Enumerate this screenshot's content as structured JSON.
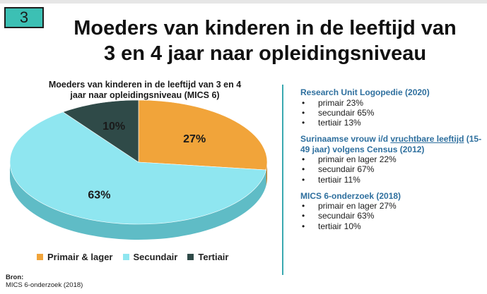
{
  "slide_number": "3",
  "title_line1": "Moeders van kinderen in de leeftijd van",
  "title_line2": "3 en 4 jaar naar opleidingsniveau",
  "source_label": "Bron:",
  "source_text": "MICS 6-onderzoek (2018)",
  "chart_data": {
    "type": "pie",
    "title_line1": "Moeders van kinderen in de leeftijd van 3 en 4",
    "title_line2": "jaar naar opleidingsniveau (MICS 6)",
    "categories": [
      "Primair & lager",
      "Secundair",
      "Tertiair"
    ],
    "values": [
      27,
      63,
      10
    ],
    "labels": [
      "27%",
      "63%",
      "10%"
    ],
    "colors": [
      "#f1a43a",
      "#8fe6f0",
      "#2f4a48"
    ],
    "side_colors": [
      "#c47f22",
      "#5fbcc6",
      "#1f3331"
    ],
    "legend_position": "bottom"
  },
  "panel": {
    "blocks": [
      {
        "heading_a": "Research Unit Logopedie (2020)",
        "heading_b": "",
        "heading_c": "",
        "items": [
          "primair 23%",
          "secundair 65%",
          "tertiair 13%"
        ]
      },
      {
        "heading_a": "Surinaamse vrouw i/d ",
        "heading_b": "vruchtbare leeftijd",
        "heading_c": " (15-49 jaar) volgens Census (2012)",
        "items": [
          "primair en lager 22%",
          "secundair 67%",
          "tertiair 11%"
        ]
      },
      {
        "heading_a": "MICS 6-onderzoek (2018)",
        "heading_b": "",
        "heading_c": "",
        "items": [
          "primair en lager 27%",
          "secundair 63%",
          "tertiair 10%"
        ]
      }
    ]
  }
}
